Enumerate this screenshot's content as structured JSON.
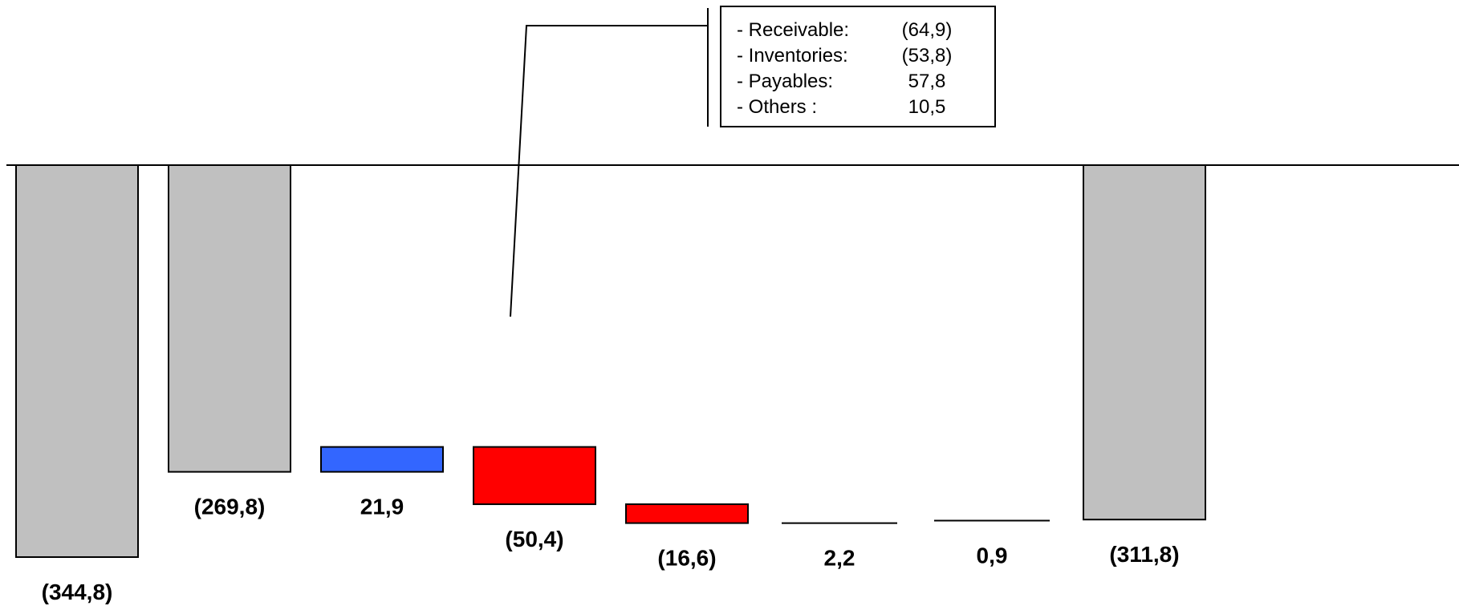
{
  "chart_data": {
    "type": "bar",
    "subtype": "waterfall",
    "title": "",
    "xlabel": "",
    "ylabel": "",
    "grid": false,
    "axis_labels_shown": false,
    "bars": [
      {
        "value": -344.8,
        "label": "(344,8)",
        "kind": "total"
      },
      {
        "value": -269.8,
        "label": "(269,8)",
        "kind": "total"
      },
      {
        "value": 21.9,
        "label": "21,9",
        "kind": "increase"
      },
      {
        "value": -50.4,
        "label": "(50,4)",
        "kind": "decrease"
      },
      {
        "value": -16.6,
        "label": "(16,6)",
        "kind": "decrease"
      },
      {
        "value": 2.2,
        "label": "2,2",
        "kind": "increase"
      },
      {
        "value": 0.9,
        "label": "0,9",
        "kind": "increase"
      },
      {
        "value": -311.8,
        "label": "(311,8)",
        "kind": "total"
      }
    ],
    "colors": {
      "total": "#c0c0c0",
      "increase": "#3366ff",
      "decrease": "#ff0000",
      "small": "#000000"
    },
    "annotation": {
      "attached_to_bar": 3,
      "items": [
        {
          "label": "- Receivable:",
          "value": "(64,9)"
        },
        {
          "label": "- Inventories:",
          "value": "(53,8)"
        },
        {
          "label": "- Payables:",
          "value": "57,8"
        },
        {
          "label": "- Others :",
          "value": "10,5"
        }
      ]
    }
  }
}
